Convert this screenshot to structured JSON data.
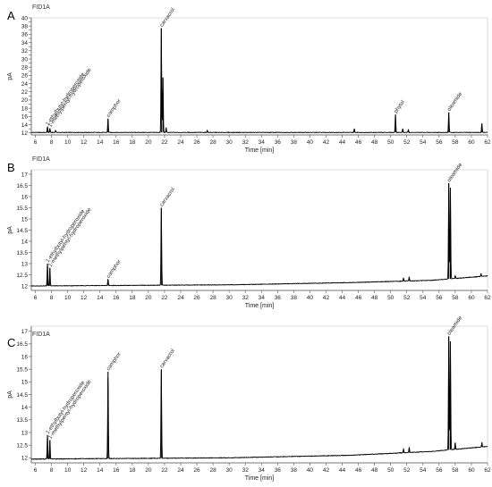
{
  "chart_data": [
    {
      "type": "line",
      "panel": "A",
      "title": "FID1A",
      "xlabel": "Time [min]",
      "ylabel": "pA",
      "xlim": [
        5.5,
        62
      ],
      "ylim": [
        11.5,
        40
      ],
      "x_ticks": [
        6,
        8,
        10,
        12,
        14,
        16,
        18,
        20,
        22,
        24,
        26,
        28,
        30,
        32,
        34,
        36,
        38,
        40,
        42,
        44,
        46,
        48,
        50,
        52,
        54,
        56,
        58,
        60,
        62
      ],
      "y_ticks": [
        12,
        13,
        14,
        15,
        16,
        17,
        18,
        19,
        20,
        21,
        22,
        23,
        24,
        25,
        26,
        27,
        28,
        29,
        30,
        31,
        32,
        33,
        34,
        35,
        36,
        37,
        38,
        39,
        40
      ],
      "y_tick_labels": [
        "12",
        "14",
        "16",
        "18",
        "20",
        "22",
        "24",
        "26",
        "28",
        "30",
        "32",
        "34",
        "36",
        "38",
        "40"
      ],
      "baseline": [
        [
          5.5,
          12.1
        ],
        [
          62,
          12.1
        ]
      ],
      "peaks": [
        {
          "x": 7.5,
          "y": 13.5
        },
        {
          "x": 7.8,
          "y": 13.1
        },
        {
          "x": 8.5,
          "y": 12.6
        },
        {
          "x": 15.0,
          "y": 15.5
        },
        {
          "x": 21.6,
          "y": 37.5
        },
        {
          "x": 21.8,
          "y": 25.5
        },
        {
          "x": 22.2,
          "y": 13.2
        },
        {
          "x": 27.3,
          "y": 12.6
        },
        {
          "x": 45.5,
          "y": 13.0
        },
        {
          "x": 50.6,
          "y": 16.5
        },
        {
          "x": 51.5,
          "y": 13.0
        },
        {
          "x": 52.2,
          "y": 12.8
        },
        {
          "x": 57.2,
          "y": 17.0
        },
        {
          "x": 61.3,
          "y": 14.3
        }
      ],
      "annotations": [
        {
          "text": "1-ethylbutyl-hydroperoxide",
          "x": 7.5,
          "y": 13.5
        },
        {
          "text": "1-methylpentyl-hydroperoxide",
          "x": 7.8,
          "y": 13.1
        },
        {
          "text": "camphor",
          "x": 15.0,
          "y": 15.5
        },
        {
          "text": "carvacrol",
          "x": 21.6,
          "y": 37.5
        },
        {
          "text": "phytol",
          "x": 50.6,
          "y": 16.5
        },
        {
          "text": "oleamide",
          "x": 57.2,
          "y": 17.0
        }
      ]
    },
    {
      "type": "line",
      "panel": "B",
      "title": "FID1A",
      "xlabel": "Time [min]",
      "ylabel": "pA",
      "xlim": [
        5.5,
        62
      ],
      "ylim": [
        11.8,
        17.2
      ],
      "x_ticks": [
        6,
        8,
        10,
        12,
        14,
        16,
        18,
        20,
        22,
        24,
        26,
        28,
        30,
        32,
        34,
        36,
        38,
        40,
        42,
        44,
        46,
        48,
        50,
        52,
        54,
        56,
        58,
        60,
        62
      ],
      "y_ticks": [
        12,
        12.5,
        13,
        13.5,
        14,
        14.5,
        15,
        15.5,
        16,
        16.5,
        17
      ],
      "y_tick_labels": [
        "12",
        "12.5",
        "13",
        "13.5",
        "14",
        "14.5",
        "15",
        "15.5",
        "16",
        "16.5",
        "17"
      ],
      "baseline": [
        [
          5.5,
          12.0
        ],
        [
          30,
          12.05
        ],
        [
          45,
          12.15
        ],
        [
          55,
          12.25
        ],
        [
          62,
          12.45
        ]
      ],
      "peaks": [
        {
          "x": 7.5,
          "y": 13.0
        },
        {
          "x": 7.8,
          "y": 12.8
        },
        {
          "x": 15.0,
          "y": 12.3
        },
        {
          "x": 21.6,
          "y": 15.5
        },
        {
          "x": 51.6,
          "y": 12.35
        },
        {
          "x": 52.3,
          "y": 12.4
        },
        {
          "x": 57.2,
          "y": 16.6
        },
        {
          "x": 57.4,
          "y": 16.4
        },
        {
          "x": 58.0,
          "y": 12.45
        },
        {
          "x": 61.2,
          "y": 12.55
        }
      ],
      "annotations": [
        {
          "text": "1-ethylbutyl-hydroperoxide",
          "x": 7.5,
          "y": 13.0
        },
        {
          "text": "1-methylpentyl-hydroperoxide",
          "x": 7.8,
          "y": 12.8
        },
        {
          "text": "camphor",
          "x": 15.0,
          "y": 12.3
        },
        {
          "text": "carvacrol",
          "x": 21.6,
          "y": 15.5
        },
        {
          "text": "oleamide",
          "x": 57.2,
          "y": 16.6
        }
      ]
    },
    {
      "type": "line",
      "panel": "C",
      "title": "FID1A",
      "xlabel": "Time [min]",
      "ylabel": "pA",
      "xlim": [
        5.5,
        62
      ],
      "ylim": [
        11.8,
        17.2
      ],
      "x_ticks": [
        6,
        8,
        10,
        12,
        14,
        16,
        18,
        20,
        22,
        24,
        26,
        28,
        30,
        32,
        34,
        36,
        38,
        40,
        42,
        44,
        46,
        48,
        50,
        52,
        54,
        56,
        58,
        60,
        62
      ],
      "y_ticks": [
        12,
        12.5,
        13,
        13.5,
        14,
        14.5,
        15,
        15.5,
        16,
        16.5,
        17
      ],
      "y_tick_labels": [
        "12",
        "12.5",
        "13",
        "13.5",
        "14",
        "14.5",
        "15",
        "15.5",
        "16",
        "16.5",
        "17"
      ],
      "baseline": [
        [
          5.5,
          11.95
        ],
        [
          30,
          12.0
        ],
        [
          45,
          12.1
        ],
        [
          55,
          12.25
        ],
        [
          62,
          12.45
        ]
      ],
      "peaks": [
        {
          "x": 7.5,
          "y": 12.9
        },
        {
          "x": 7.8,
          "y": 12.7
        },
        {
          "x": 15.0,
          "y": 15.4
        },
        {
          "x": 21.6,
          "y": 15.5
        },
        {
          "x": 51.6,
          "y": 12.35
        },
        {
          "x": 52.3,
          "y": 12.4
        },
        {
          "x": 57.2,
          "y": 16.8
        },
        {
          "x": 57.4,
          "y": 16.6
        },
        {
          "x": 58.0,
          "y": 12.6
        },
        {
          "x": 61.3,
          "y": 12.6
        }
      ],
      "annotations": [
        {
          "text": "1-ethylbutyl-hydroperoxide",
          "x": 7.5,
          "y": 12.9
        },
        {
          "text": "1-methylpentyl-hydroperoxide",
          "x": 7.8,
          "y": 12.7
        },
        {
          "text": "camphor",
          "x": 15.0,
          "y": 15.4
        },
        {
          "text": "carvacrol",
          "x": 21.6,
          "y": 15.5
        },
        {
          "text": "oleamide",
          "x": 57.2,
          "y": 16.8
        }
      ]
    }
  ]
}
